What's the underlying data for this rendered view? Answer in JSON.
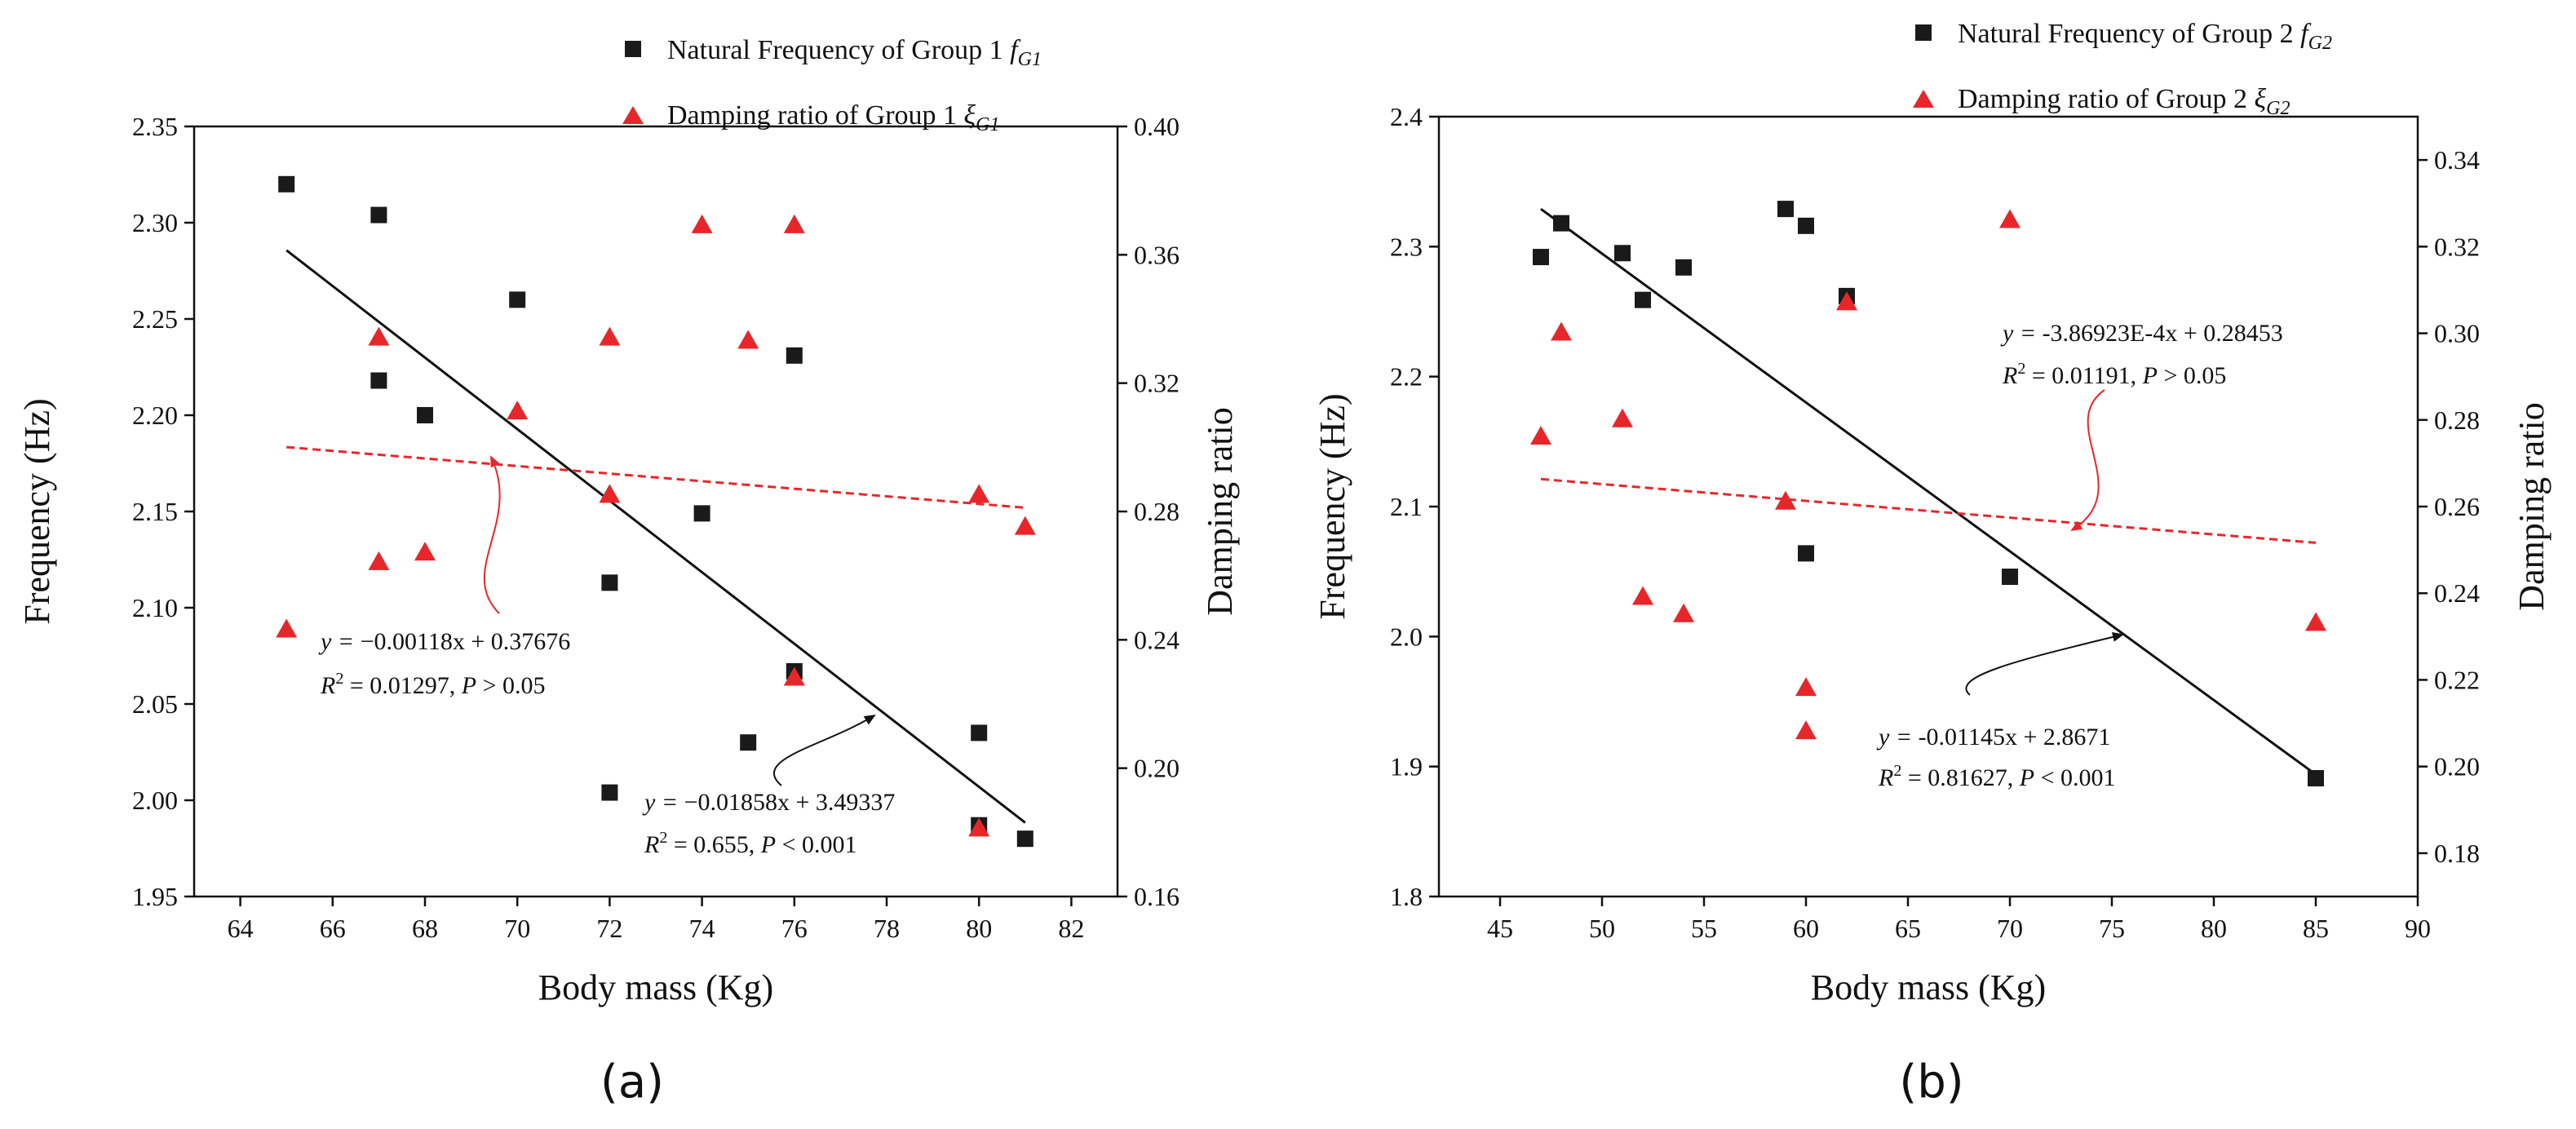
{
  "colors": {
    "frequency": "#1a1a1a",
    "damping": "#e8262a",
    "fit_frequency": "#111111",
    "fit_damping": "#e8262a"
  },
  "chart_data": [
    {
      "type": "scatter",
      "panel_label": "(a)",
      "xlabel": "Body mass (Kg)",
      "ylabel": "Frequency (Hz)",
      "y2label": "Damping ratio",
      "xlim": [
        63,
        83
      ],
      "ylim": [
        1.95,
        2.35
      ],
      "y2lim": [
        0.16,
        0.4
      ],
      "xticks": [
        "64",
        "66",
        "68",
        "70",
        "72",
        "74",
        "76",
        "78",
        "80",
        "82"
      ],
      "yticks": [
        "1.95",
        "2.00",
        "2.05",
        "2.10",
        "2.15",
        "2.20",
        "2.25",
        "2.30",
        "2.35"
      ],
      "y2ticks": [
        "0.16",
        "0.20",
        "0.24",
        "0.28",
        "0.32",
        "0.36",
        "0.40"
      ],
      "legend_position": "top",
      "series": [
        {
          "name": "Natural Frequency of Group 1",
          "name_symbol": "f",
          "name_sub": "G1",
          "axis": "left",
          "marker": "square",
          "points": [
            [
              65,
              2.32
            ],
            [
              67,
              2.304
            ],
            [
              67,
              2.218
            ],
            [
              68,
              2.2
            ],
            [
              70,
              2.26
            ],
            [
              72,
              2.113
            ],
            [
              72,
              2.004
            ],
            [
              74,
              2.149
            ],
            [
              75,
              2.03
            ],
            [
              76,
              2.231
            ],
            [
              76,
              2.067
            ],
            [
              80,
              2.035
            ],
            [
              80,
              1.987
            ],
            [
              81,
              1.98
            ]
          ]
        },
        {
          "name": "Damping ratio of Group 1",
          "name_symbol": "ξ",
          "name_sub": "G1",
          "axis": "right",
          "marker": "triangle",
          "points": [
            [
              65,
              0.243
            ],
            [
              67,
              0.334
            ],
            [
              67,
              0.264
            ],
            [
              68,
              0.267
            ],
            [
              70,
              0.311
            ],
            [
              72,
              0.334
            ],
            [
              72,
              0.285
            ],
            [
              74,
              0.369
            ],
            [
              75,
              0.333
            ],
            [
              76,
              0.369
            ],
            [
              76,
              0.228
            ],
            [
              80,
              0.285
            ],
            [
              80,
              0.181
            ],
            [
              81,
              0.275
            ]
          ]
        }
      ],
      "fits": [
        {
          "axis": "left",
          "x_range": [
            65,
            81
          ],
          "slope": -0.01858,
          "intercept": 3.49337,
          "eq_prefix": "y = ",
          "eq_body": "−0.01858x + 3.49337",
          "r2_text": " = 0.655, ",
          "p_text": " < 0.001"
        },
        {
          "axis": "right",
          "x_range": [
            65,
            81
          ],
          "slope": -0.00118,
          "intercept": 0.37676,
          "eq_prefix": "y = ",
          "eq_body": "−0.00118x + 0.37676",
          "r2_text": " = 0.01297, ",
          "p_text": " > 0.05"
        }
      ]
    },
    {
      "type": "scatter",
      "panel_label": "(b)",
      "xlabel": "Body mass (Kg)",
      "ylabel": "Frequency (Hz)",
      "y2label": "Damping ratio",
      "xlim": [
        42,
        90
      ],
      "ylim": [
        1.8,
        2.4
      ],
      "y2lim": [
        0.17,
        0.35
      ],
      "xticks": [
        "45",
        "50",
        "55",
        "60",
        "65",
        "70",
        "75",
        "80",
        "85",
        "90"
      ],
      "yticks": [
        "1.8",
        "1.9",
        "2.0",
        "2.1",
        "2.2",
        "2.3",
        "2.4"
      ],
      "y2ticks": [
        "0.18",
        "0.20",
        "0.22",
        "0.24",
        "0.26",
        "0.28",
        "0.30",
        "0.32",
        "0.34"
      ],
      "legend_position": "top",
      "series": [
        {
          "name": "Natural Frequency of Group 2",
          "name_symbol": "f",
          "name_sub": "G2",
          "axis": "left",
          "marker": "square",
          "points": [
            [
              47,
              2.292
            ],
            [
              48,
              2.318
            ],
            [
              51,
              2.295
            ],
            [
              52,
              2.259
            ],
            [
              54,
              2.284
            ],
            [
              59,
              2.329
            ],
            [
              60,
              2.316
            ],
            [
              60,
              2.064
            ],
            [
              62,
              2.262
            ],
            [
              70,
              2.046
            ],
            [
              85,
              1.891
            ]
          ]
        },
        {
          "name": "Damping ratio of Group 2",
          "name_symbol": "ξ",
          "name_sub": "G2",
          "axis": "right",
          "marker": "triangle",
          "points": [
            [
              47,
              0.276
            ],
            [
              48,
              0.3
            ],
            [
              51,
              0.28
            ],
            [
              52,
              0.239
            ],
            [
              54,
              0.235
            ],
            [
              59,
              0.261
            ],
            [
              60,
              0.218
            ],
            [
              60,
              0.208
            ],
            [
              62,
              0.307
            ],
            [
              70,
              0.326
            ],
            [
              85,
              0.233
            ]
          ]
        }
      ],
      "fits": [
        {
          "axis": "left",
          "x_range": [
            47,
            85
          ],
          "slope": -0.01145,
          "intercept": 2.8671,
          "eq_prefix": "y = ",
          "eq_body": "-0.01145x + 2.8671",
          "r2_text": " = 0.81627, ",
          "p_text": " < 0.001"
        },
        {
          "axis": "right",
          "x_range": [
            47,
            85
          ],
          "slope": -0.000386923,
          "intercept": 0.28453,
          "eq_prefix": "y = ",
          "eq_body": "-3.86923E-4x + 0.28453",
          "r2_text": " = 0.01191, ",
          "p_text": " > 0.05"
        }
      ]
    }
  ]
}
